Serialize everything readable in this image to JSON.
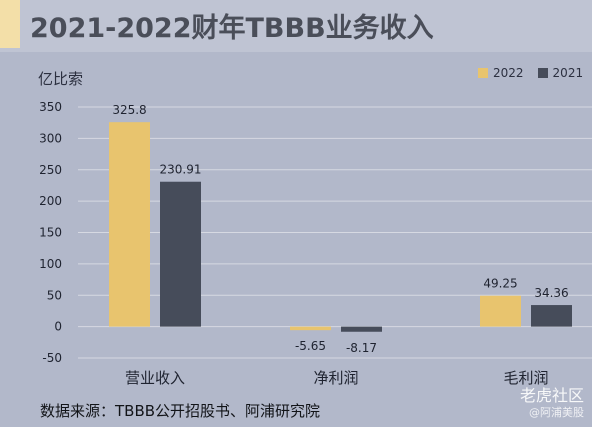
{
  "title": "2021-2022财年TBBB业务收入",
  "source": "数据来源：TBBB公开招股书、阿浦研究院",
  "watermark": {
    "main": "老虎社区",
    "sub": "@阿浦美股"
  },
  "colors": {
    "2022": "#e8c46e",
    "2021": "#464c5a",
    "grid": "#d6d9e2",
    "background": "#b2b8ca"
  },
  "chart_data": {
    "type": "bar",
    "title": "2021-2022财年TBBB业务收入",
    "ylabel": "亿比索",
    "xlabel": "",
    "categories": [
      "营业收入",
      "净利润",
      "毛利润"
    ],
    "series": [
      {
        "name": "2022",
        "values": [
          325.8,
          -5.65,
          49.25
        ],
        "labels": [
          "325.8",
          "-5.65",
          "49.25"
        ]
      },
      {
        "name": "2021",
        "values": [
          230.91,
          -8.17,
          34.36
        ],
        "labels": [
          "230.91",
          "-8.17",
          "34.36"
        ]
      }
    ],
    "ylim": [
      -50,
      350
    ],
    "yticks": [
      -50,
      0,
      50,
      100,
      150,
      200,
      250,
      300,
      350
    ],
    "grid": true,
    "legend": "top-right"
  }
}
